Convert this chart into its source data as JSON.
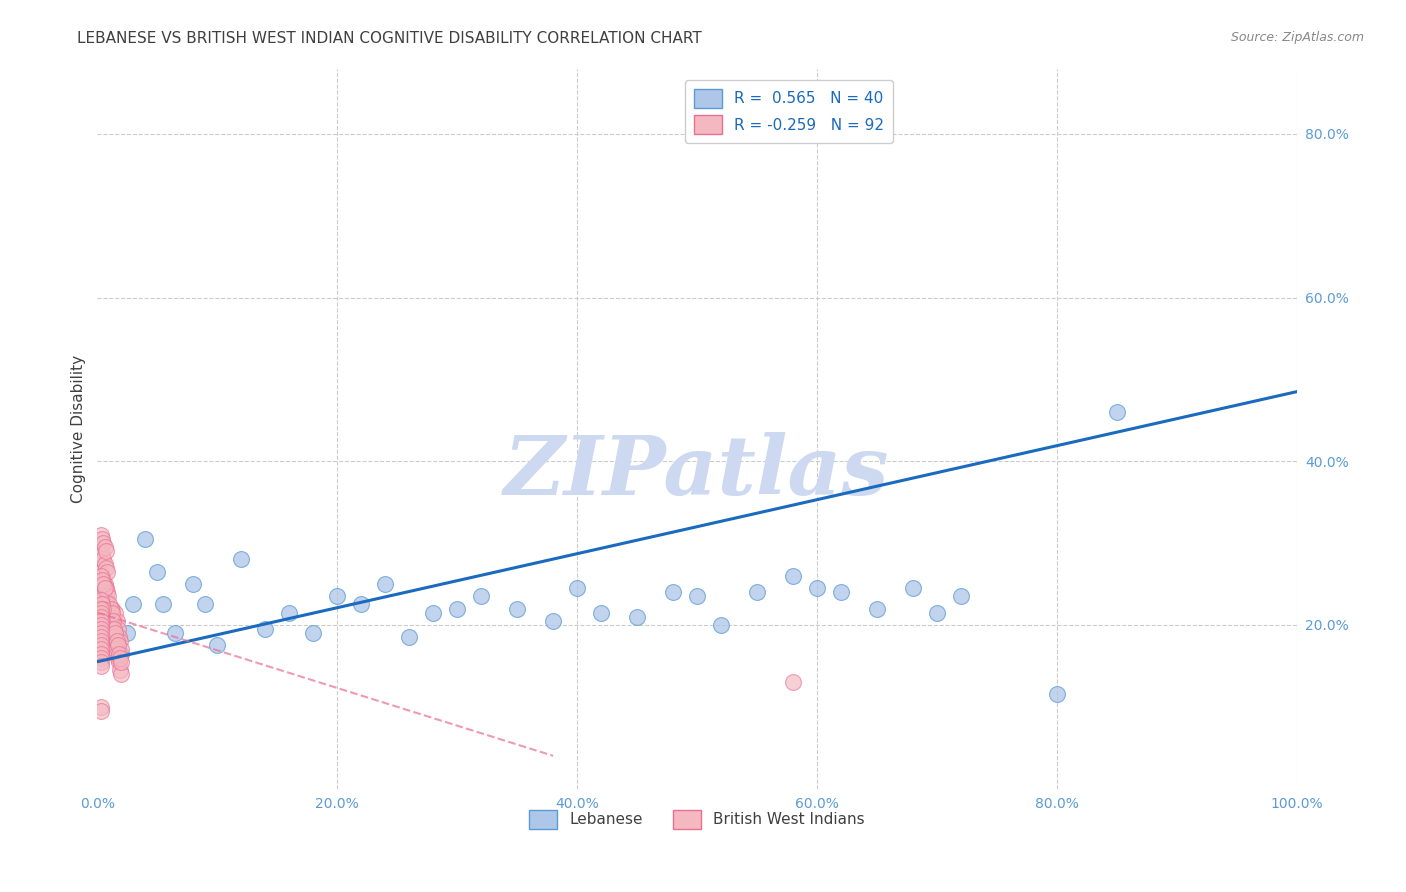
{
  "title": "LEBANESE VS BRITISH WEST INDIAN COGNITIVE DISABILITY CORRELATION CHART",
  "source": "Source: ZipAtlas.com",
  "ylabel": "Cognitive Disability",
  "xlim": [
    0,
    1.0
  ],
  "ylim": [
    0,
    0.88
  ],
  "xticks": [
    0.0,
    0.2,
    0.4,
    0.6,
    0.8,
    1.0
  ],
  "xtick_labels": [
    "0.0%",
    "20.0%",
    "40.0%",
    "60.0%",
    "80.0%",
    "100.0%"
  ],
  "ytick_values": [
    0.2,
    0.4,
    0.6,
    0.8
  ],
  "ytick_labels": [
    "20.0%",
    "40.0%",
    "60.0%",
    "80.0%"
  ],
  "blue_scatter_face": "#aec6e8",
  "blue_scatter_edge": "#5b9bd5",
  "pink_scatter_face": "#f4b8c1",
  "pink_scatter_edge": "#e87090",
  "blue_line_color": "#1a6abf",
  "pink_line_color": "#e87090",
  "grid_color": "#cccccc",
  "title_color": "#404040",
  "source_color": "#888888",
  "tick_color": "#5b9bd5",
  "ylabel_color": "#404040",
  "watermark": "ZIPatlas",
  "watermark_color": "#ccd9f0",
  "legend_r_n_1": "R =  0.565   N = 40",
  "legend_r_n_2": "R = -0.259   N = 92",
  "legend_label_1": "Lebanese",
  "legend_label_2": "British West Indians",
  "blue_line_x0": 0.0,
  "blue_line_y0": 0.155,
  "blue_line_x1": 1.0,
  "blue_line_y1": 0.485,
  "pink_line_x0": 0.0,
  "pink_line_y0": 0.215,
  "pink_line_x1": 0.38,
  "pink_line_y1": 0.04,
  "lebanese_x": [
    0.015,
    0.02,
    0.025,
    0.03,
    0.04,
    0.05,
    0.055,
    0.065,
    0.08,
    0.09,
    0.1,
    0.12,
    0.14,
    0.16,
    0.18,
    0.2,
    0.22,
    0.24,
    0.26,
    0.28,
    0.3,
    0.32,
    0.35,
    0.38,
    0.4,
    0.42,
    0.45,
    0.48,
    0.5,
    0.52,
    0.55,
    0.58,
    0.6,
    0.62,
    0.65,
    0.68,
    0.7,
    0.72,
    0.85,
    0.8
  ],
  "lebanese_y": [
    0.175,
    0.165,
    0.19,
    0.225,
    0.305,
    0.265,
    0.225,
    0.19,
    0.25,
    0.225,
    0.175,
    0.28,
    0.195,
    0.215,
    0.19,
    0.235,
    0.225,
    0.25,
    0.185,
    0.215,
    0.22,
    0.235,
    0.22,
    0.205,
    0.245,
    0.215,
    0.21,
    0.24,
    0.235,
    0.2,
    0.24,
    0.26,
    0.245,
    0.24,
    0.22,
    0.245,
    0.215,
    0.235,
    0.46,
    0.115
  ],
  "bwi_x": [
    0.003,
    0.004,
    0.005,
    0.006,
    0.007,
    0.008,
    0.009,
    0.01,
    0.011,
    0.012,
    0.013,
    0.014,
    0.015,
    0.016,
    0.017,
    0.018,
    0.019,
    0.02,
    0.003,
    0.004,
    0.005,
    0.006,
    0.007,
    0.008,
    0.009,
    0.01,
    0.011,
    0.012,
    0.013,
    0.014,
    0.015,
    0.016,
    0.017,
    0.018,
    0.019,
    0.02,
    0.003,
    0.004,
    0.005,
    0.006,
    0.007,
    0.008,
    0.009,
    0.01,
    0.011,
    0.012,
    0.013,
    0.014,
    0.015,
    0.016,
    0.017,
    0.018,
    0.019,
    0.02,
    0.003,
    0.004,
    0.005,
    0.006,
    0.007,
    0.008,
    0.003,
    0.004,
    0.005,
    0.006,
    0.007,
    0.003,
    0.004,
    0.005,
    0.006,
    0.003,
    0.004,
    0.005,
    0.003,
    0.004,
    0.003,
    0.003,
    0.003,
    0.003,
    0.003,
    0.003,
    0.003,
    0.003,
    0.003,
    0.003,
    0.003,
    0.003,
    0.003,
    0.003,
    0.003,
    0.58,
    0.003,
    0.003
  ],
  "bwi_y": [
    0.215,
    0.225,
    0.22,
    0.21,
    0.23,
    0.22,
    0.215,
    0.2,
    0.21,
    0.22,
    0.205,
    0.195,
    0.215,
    0.205,
    0.195,
    0.185,
    0.18,
    0.17,
    0.245,
    0.24,
    0.235,
    0.23,
    0.225,
    0.22,
    0.215,
    0.205,
    0.2,
    0.195,
    0.185,
    0.175,
    0.17,
    0.165,
    0.16,
    0.155,
    0.145,
    0.14,
    0.265,
    0.26,
    0.255,
    0.25,
    0.245,
    0.24,
    0.235,
    0.225,
    0.22,
    0.215,
    0.205,
    0.195,
    0.19,
    0.18,
    0.175,
    0.165,
    0.16,
    0.155,
    0.29,
    0.285,
    0.28,
    0.275,
    0.27,
    0.265,
    0.31,
    0.305,
    0.3,
    0.295,
    0.29,
    0.26,
    0.255,
    0.25,
    0.245,
    0.23,
    0.225,
    0.22,
    0.21,
    0.205,
    0.22,
    0.215,
    0.21,
    0.205,
    0.2,
    0.195,
    0.19,
    0.185,
    0.18,
    0.175,
    0.17,
    0.165,
    0.16,
    0.155,
    0.15,
    0.13,
    0.1,
    0.095
  ]
}
